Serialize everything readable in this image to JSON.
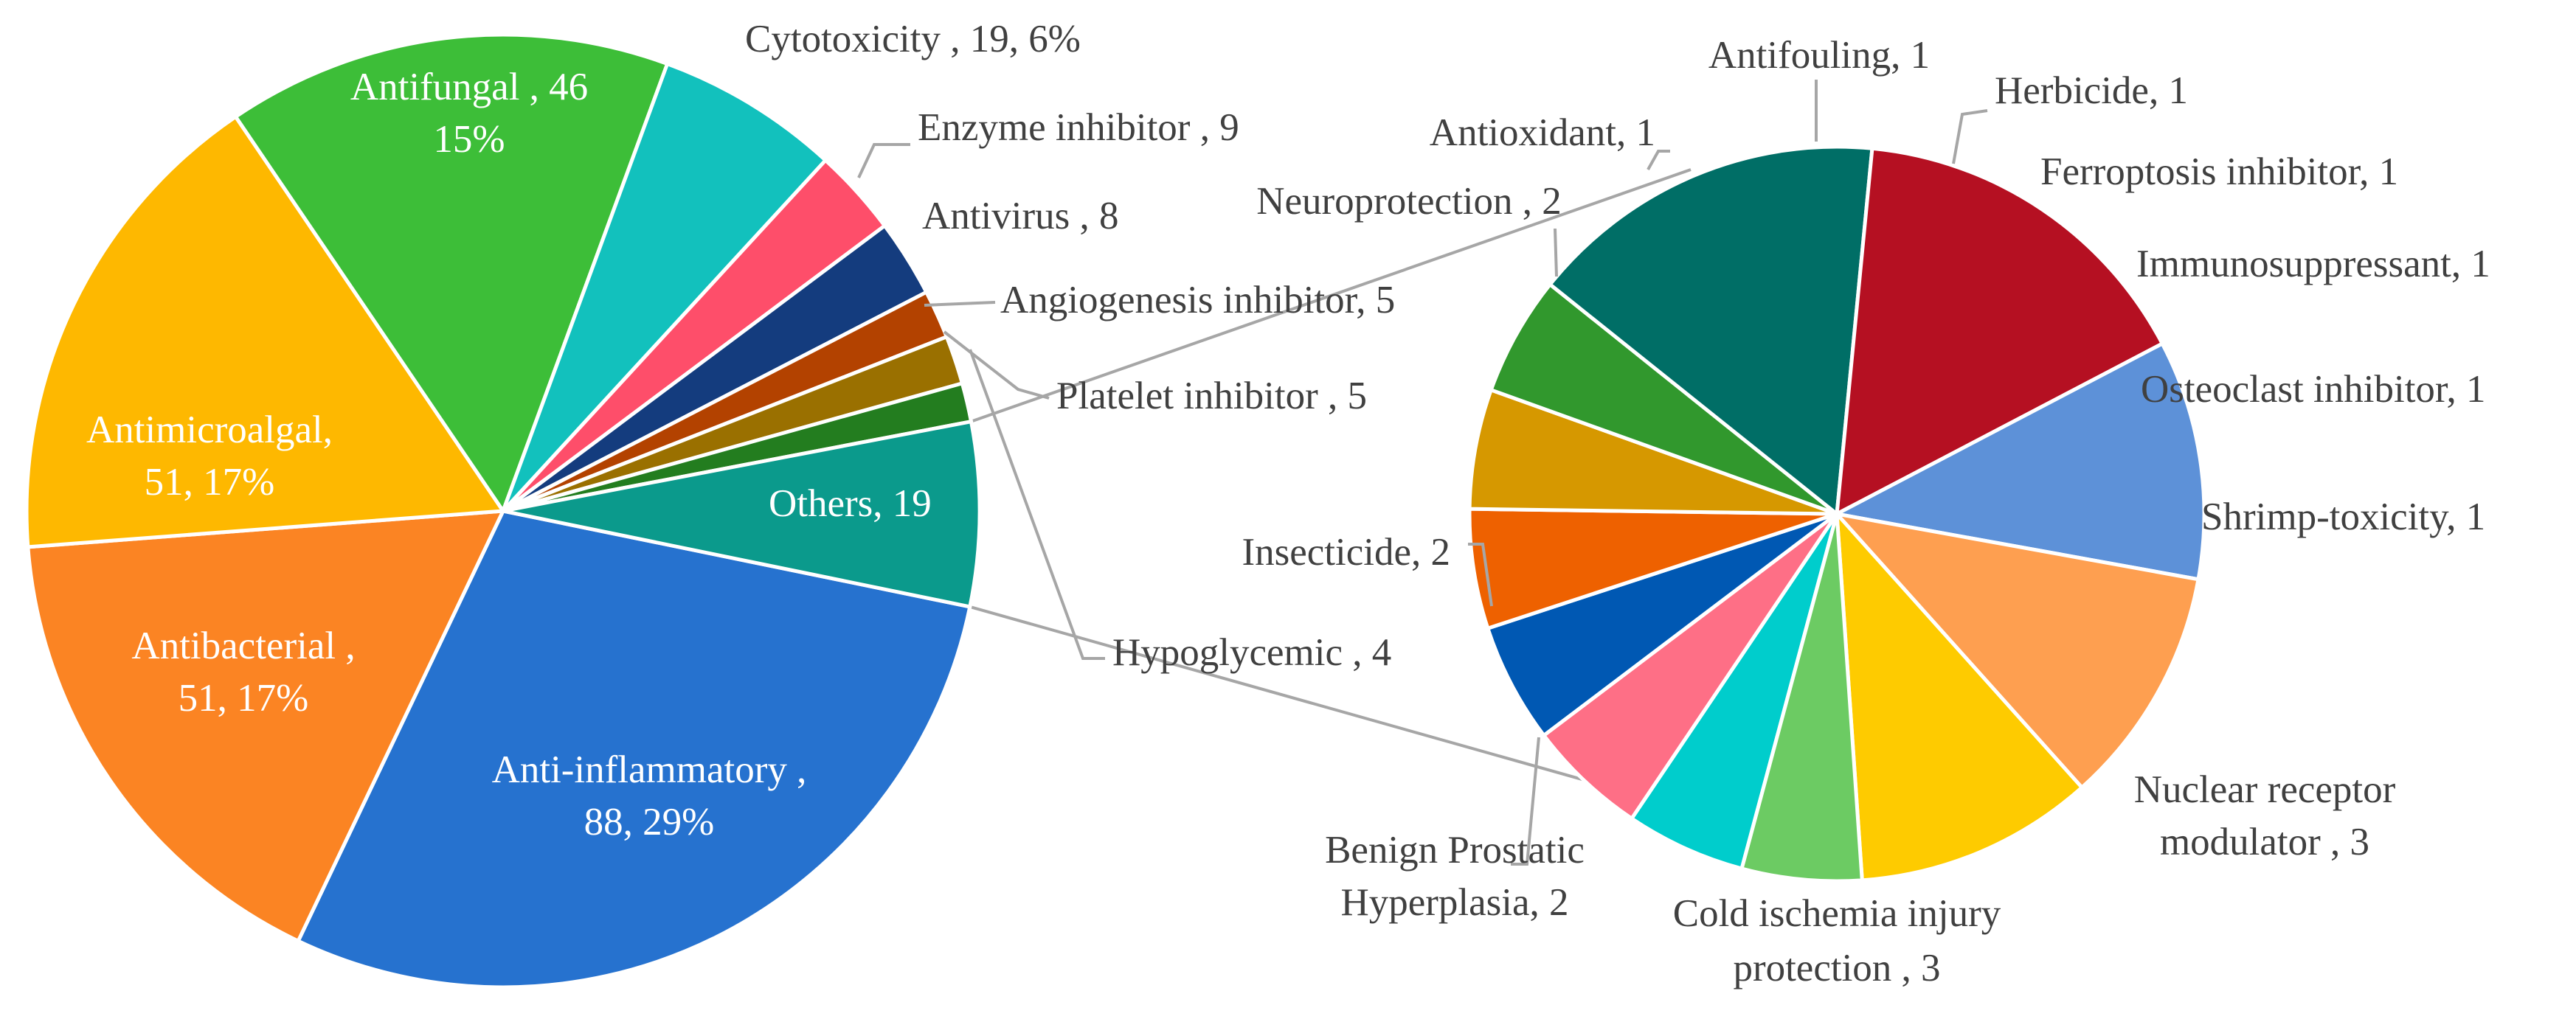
{
  "chart_data": [
    {
      "type": "pie",
      "name": "main",
      "slices": [
        {
          "label": "Anti-inflammatory",
          "value": 88,
          "text": [
            "Anti-inflammatory ,",
            "88, 29%"
          ],
          "color": "#2672CF",
          "label_color": "#ffffff"
        },
        {
          "label": "Antibacterial",
          "value": 51,
          "text": [
            "Antibacterial ,",
            "51, 17%"
          ],
          "color": "#FB8423",
          "label_color": "#ffffff"
        },
        {
          "label": "Antimicroalgal",
          "value": 51,
          "text": [
            "Antimicroalgal,",
            "51, 17%"
          ],
          "color": "#FEB800",
          "label_color": "#ffffff"
        },
        {
          "label": "Antifungal",
          "value": 46,
          "text": [
            "Antifungal , 46",
            "15%"
          ],
          "color": "#3DBE38",
          "label_color": "#ffffff"
        },
        {
          "label": "Cytotoxicity",
          "value": 19,
          "text": [
            "Cytotoxicity , 19, 6%"
          ],
          "color": "#12C1BD",
          "label_color": "#404040"
        },
        {
          "label": "Enzyme inhibitor",
          "value": 9,
          "text": [
            "Enzyme inhibitor , 9"
          ],
          "color": "#FE4E6A",
          "label_color": "#404040"
        },
        {
          "label": "Antivirus",
          "value": 8,
          "text": [
            "Antivirus , 8"
          ],
          "color": "#143C7E",
          "label_color": "#404040"
        },
        {
          "label": "Angiogenesis inhibitor",
          "value": 5,
          "text": [
            "Angiogenesis  inhibitor, 5"
          ],
          "color": "#B34200",
          "label_color": "#404040"
        },
        {
          "label": "Platelet inhibitor",
          "value": 5,
          "text": [
            "Platelet inhibitor , 5"
          ],
          "color": "#9A7000",
          "label_color": "#404040"
        },
        {
          "label": "Hypoglycemic",
          "value": 4,
          "text": [
            "Hypoglycemic  , 4"
          ],
          "color": "#237D1F",
          "label_color": "#404040"
        },
        {
          "label": "Others",
          "value": 19,
          "text": [
            "Others, 19"
          ],
          "color": "#0B9A8C",
          "label_color": "#ffffff"
        }
      ]
    },
    {
      "type": "pie",
      "name": "others-breakdown",
      "slices": [
        {
          "label": "Antifouling",
          "value": 1,
          "text": [
            "Antifouling, 1"
          ],
          "color": "#00CDCC"
        },
        {
          "label": "Herbicide",
          "value": 1,
          "text": [
            "Herbicide, 1"
          ],
          "color": "#FE6F86"
        },
        {
          "label": "Ferroptosis inhibitor",
          "value": 1,
          "text": [
            "Ferroptosis inhibitor, 1"
          ],
          "color": "#0058B3"
        },
        {
          "label": "Immunosuppressant",
          "value": 1,
          "text": [
            "Immunosuppressant, 1"
          ],
          "color": "#EE6100"
        },
        {
          "label": "Osteoclast inhibitor",
          "value": 1,
          "text": [
            "Osteoclast inhibitor, 1"
          ],
          "color": "#D69800"
        },
        {
          "label": "Shrimp-toxicity",
          "value": 1,
          "text": [
            "Shrimp-toxicity, 1"
          ],
          "color": "#31982D"
        },
        {
          "label": "Nuclear receptor modulator",
          "value": 3,
          "text": [
            "Nuclear receptor",
            "modulator , 3"
          ],
          "color": "#006E66"
        },
        {
          "label": "Cold ischemia injury protection",
          "value": 3,
          "text": [
            "Cold ischemia injury",
            "protection , 3"
          ],
          "color": "#B51022"
        },
        {
          "label": "Benign Prostatic Hyperplasia",
          "value": 2,
          "text": [
            "Benign Prostatic",
            "Hyperplasia, 2"
          ],
          "color": "#5D91D8"
        },
        {
          "label": "Insecticide",
          "value": 2,
          "text": [
            "Insecticide,  2"
          ],
          "color": "#FE9F50"
        },
        {
          "label": "Neuroprotection",
          "value": 2,
          "text": [
            "Neuroprotection , 2"
          ],
          "color": "#FECB00"
        },
        {
          "label": "Antioxidant",
          "value": 1,
          "text": [
            "Antioxidant, 1"
          ],
          "color": "#6CCB63"
        }
      ]
    }
  ]
}
